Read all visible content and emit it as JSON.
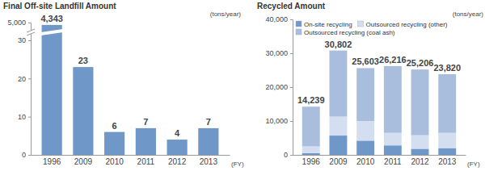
{
  "chart_data": [
    {
      "type": "bar",
      "title": "Final Off-site Landfill Amount",
      "y_label": "(tons/year)",
      "x_label": "(FY)",
      "categories": [
        "1996",
        "2009",
        "2010",
        "2011",
        "2012",
        "2013"
      ],
      "values": [
        4343,
        23,
        6,
        7,
        4,
        7
      ],
      "value_labels": [
        "4,343",
        "23",
        "6",
        "7",
        "4",
        "7"
      ],
      "color": "#6f98c8",
      "ylim": [
        0,
        5000
      ],
      "yticks": [
        0,
        10,
        20,
        30,
        {
          "value": 5000,
          "label": "5,000"
        }
      ],
      "data_labels": true
    },
    {
      "type": "bar",
      "stacked": true,
      "title": "Recycled Amount",
      "y_label": "(tons/year)",
      "x_label": "(FY)",
      "categories": [
        "1996",
        "2009",
        "2010",
        "2011",
        "2012",
        "2013"
      ],
      "series": [
        {
          "name": "On-site recycling",
          "color": "#6f98c8",
          "values": [
            500,
            5700,
            4200,
            2800,
            1800,
            2000
          ]
        },
        {
          "name": "Outsourced recycling (other)",
          "color": "#d3dff0",
          "values": [
            2000,
            5600,
            5800,
            3700,
            4000,
            4500
          ]
        },
        {
          "name": "Outsourced recycling (coal ash)",
          "color": "#a9bedd",
          "values": [
            11739,
            19502,
            15603,
            19716,
            19406,
            17320
          ]
        }
      ],
      "totals": [
        14239,
        30802,
        25603,
        26216,
        25206,
        23820
      ],
      "total_labels": [
        "14,239",
        "30,802",
        "25,603",
        "26,216",
        "25,206",
        "23,820"
      ],
      "ylim": [
        0,
        40000
      ],
      "yticks": [
        0,
        {
          "value": 10000,
          "label": "10,000"
        },
        {
          "value": 20000,
          "label": "20,000"
        },
        {
          "value": 30000,
          "label": "30,000"
        },
        {
          "value": 40000,
          "label": "40,000"
        }
      ],
      "legend": "upper left",
      "data_labels": true
    }
  ]
}
